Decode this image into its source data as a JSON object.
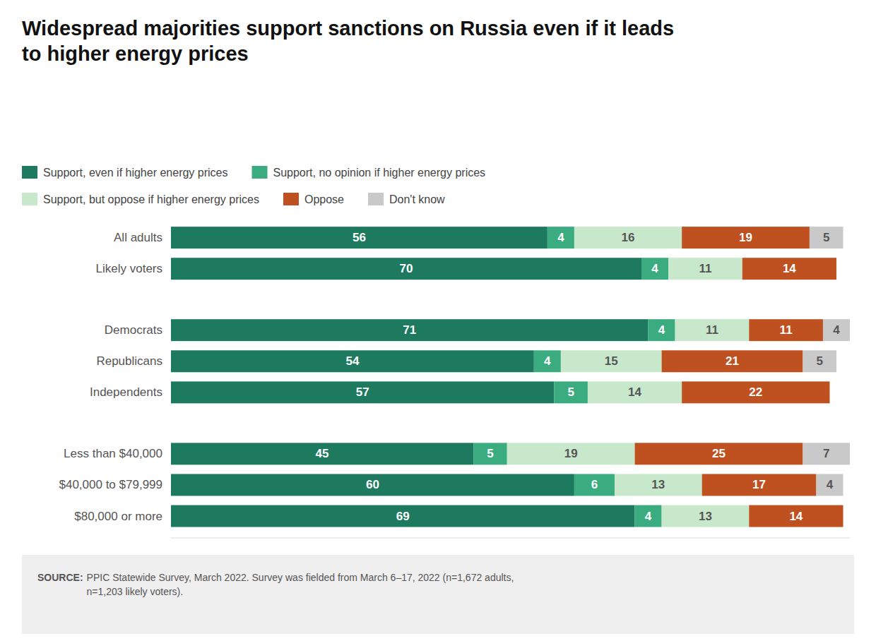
{
  "chart_data": {
    "type": "bar",
    "orientation": "horizontal",
    "stacked": true,
    "data_labels": true,
    "tick_labels": "y",
    "grid": false,
    "title": "Widespread majorities support sanctions on Russia even if it leads\nto higher energy prices",
    "categories": [
      "All adults",
      "Likely voters",
      "Democrats",
      "Republicans",
      "Independents",
      "Less than $40,000",
      "$40,000 to $79,999",
      "$80,000 or more"
    ],
    "series": [
      {
        "name": "Support, even if higher energy prices",
        "color": "#1d7a5f",
        "values": [
          56,
          70,
          71,
          54,
          57,
          45,
          60,
          69
        ]
      },
      {
        "name": "Support, no opinion if higher energy prices",
        "color": "#3bab80",
        "values": [
          4,
          4,
          4,
          4,
          5,
          5,
          6,
          4
        ]
      },
      {
        "name": "Support, but oppose if higher energy prices",
        "color": "#c8e8cc",
        "values": [
          16,
          11,
          11,
          15,
          14,
          19,
          13,
          13
        ]
      },
      {
        "name": "Oppose",
        "color": "#bf5020",
        "values": [
          19,
          14,
          11,
          21,
          22,
          25,
          17,
          14
        ]
      },
      {
        "name": "Don't know",
        "color": "#c9c9c9",
        "values": [
          5,
          0,
          4,
          5,
          0,
          7,
          4,
          0
        ]
      }
    ],
    "xlim": [
      0,
      101
    ],
    "annotations": [
      "SOURCE:",
      "PPIC Statewide Survey, March 2022. Survey was fielded from March 6–17, 2022 (n=1,672 adults,\nn=1,203 likely voters)."
    ]
  }
}
